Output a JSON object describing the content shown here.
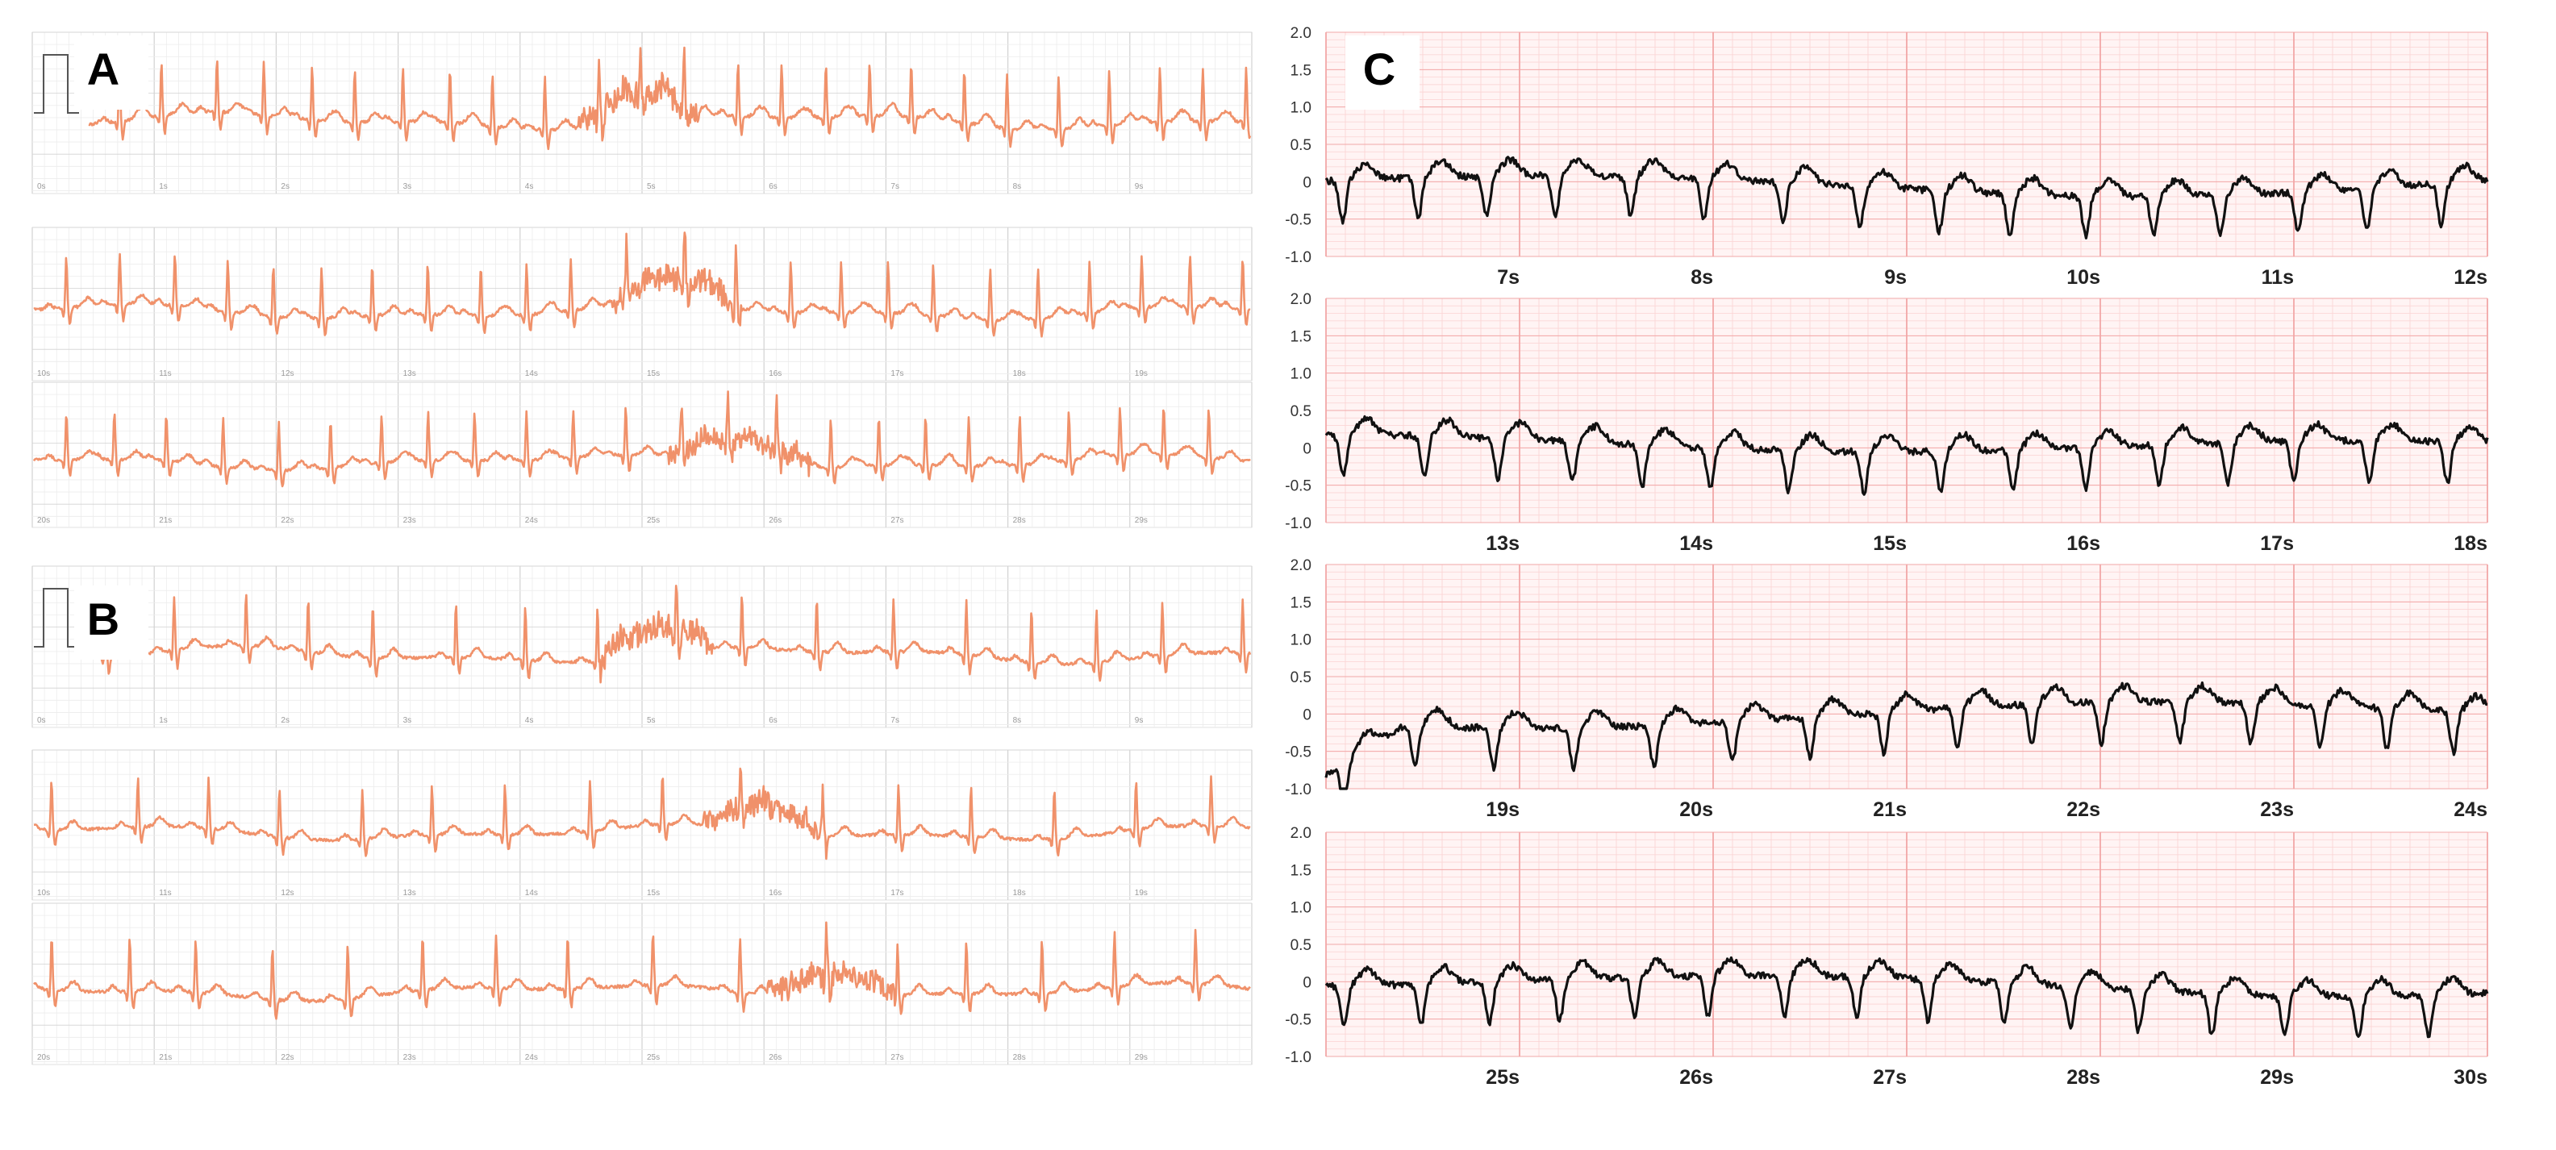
{
  "panels": {
    "A": {
      "label": "A"
    },
    "B": {
      "label": "B"
    },
    "C": {
      "label": "C"
    }
  },
  "colors": {
    "trace_left": "#f0916a",
    "trace_right": "#111111",
    "grid_minor_left": "#ececec",
    "grid_major_left": "#d2d2d2",
    "bg_right": "#fff4f4",
    "grid_minor_right": "#fbd6d6",
    "grid_major_right": "#f2a7a7",
    "tick_text": "#333333",
    "small_tick_text": "#9a9a9a"
  },
  "chart_data": [
    {
      "panel": "A",
      "type": "line",
      "strips": [
        {
          "x_ticks": [
            "0s",
            "1s",
            "2s",
            "3s",
            "4s",
            "5s",
            "6s",
            "7s",
            "8s",
            "9s"
          ]
        },
        {
          "x_ticks": [
            "10s",
            "11s",
            "12s",
            "13s",
            "14s",
            "15s",
            "16s",
            "17s",
            "18s",
            "19s"
          ]
        },
        {
          "x_ticks": [
            "20s",
            "21s",
            "22s",
            "23s",
            "24s",
            "25s",
            "26s",
            "27s",
            "28s",
            "29s"
          ]
        }
      ],
      "heart_rate_pattern": "regular rhythm, about 2.4 beats per second"
    },
    {
      "panel": "B",
      "type": "line",
      "strips": [
        {
          "x_ticks": [
            "0s",
            "1s",
            "2s",
            "3s",
            "4s",
            "5s",
            "6s",
            "7s",
            "8s",
            "9s"
          ]
        },
        {
          "x_ticks": [
            "10s",
            "11s",
            "12s",
            "13s",
            "14s",
            "15s",
            "16s",
            "17s",
            "18s",
            "19s"
          ]
        },
        {
          "x_ticks": [
            "20s",
            "21s",
            "22s",
            "23s",
            "24s",
            "25s",
            "26s",
            "27s",
            "28s",
            "29s"
          ]
        }
      ],
      "heart_rate_pattern": "regular rhythm, about 1.6 beats per second"
    },
    {
      "panel": "C",
      "type": "line",
      "ylim": [
        -1.0,
        2.0
      ],
      "y_ticks": [
        "2.0",
        "1.5",
        "1.0",
        "0.5",
        "0",
        "-0.5",
        "-1.0"
      ],
      "strips": [
        {
          "x_range": [
            6,
            12
          ],
          "x_ticks": [
            "7s",
            "8s",
            "9s",
            "10s",
            "11s",
            "12s"
          ]
        },
        {
          "x_range": [
            12,
            18
          ],
          "x_ticks": [
            "13s",
            "14s",
            "15s",
            "16s",
            "17s",
            "18s"
          ]
        },
        {
          "x_range": [
            18,
            24
          ],
          "x_ticks": [
            "19s",
            "20s",
            "21s",
            "22s",
            "23s",
            "24s"
          ]
        },
        {
          "x_range": [
            24,
            30
          ],
          "x_ticks": [
            "25s",
            "26s",
            "27s",
            "28s",
            "29s",
            "30s"
          ]
        }
      ],
      "baseline_level": 0,
      "beat_amplitude_min": -0.6,
      "beat_amplitude_max": 0.5
    }
  ]
}
